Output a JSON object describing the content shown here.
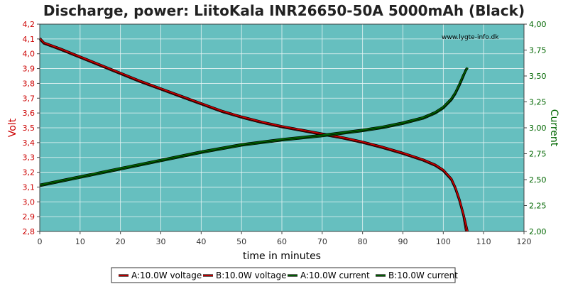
{
  "chart_data": {
    "type": "line",
    "title": "Discharge, power: LiitoKala INR26650-50A 5000mAh (Black)",
    "watermark": "www.lygte-info.dk",
    "xlabel": "time in minutes",
    "ylabel_left": "Volt",
    "ylabel_right": "Current",
    "xlim": [
      0,
      120
    ],
    "ylim_left": [
      2.8,
      4.2
    ],
    "ylim_right": [
      2.0,
      4.0
    ],
    "x_ticks": [
      "0",
      "10",
      "20",
      "30",
      "40",
      "50",
      "60",
      "70",
      "80",
      "90",
      "100",
      "110",
      "120"
    ],
    "y_left_ticks": [
      "2,8",
      "2,9",
      "3,0",
      "3,1",
      "3,2",
      "3,3",
      "3,4",
      "3,5",
      "3,6",
      "3,7",
      "3,8",
      "3,9",
      "4,0",
      "4,1",
      "4,2"
    ],
    "y_right_ticks": [
      "2,00",
      "2,25",
      "2,50",
      "2,75",
      "3,00",
      "3,25",
      "3,50",
      "3,75",
      "4,00"
    ],
    "grid": true,
    "legend_position": "bottom",
    "colors": {
      "plot_bg": "#66bfbf",
      "voltage": "#cc0000",
      "current": "#006600",
      "left_axis": "#cc0000",
      "right_axis": "#006600",
      "grid": "#e8f4f4"
    },
    "series": [
      {
        "name": "A:10.0W voltage",
        "axis": "left",
        "color": "#cc0000",
        "x": [
          0,
          1,
          3,
          5,
          10,
          15,
          20,
          25,
          30,
          35,
          40,
          45,
          50,
          55,
          60,
          65,
          70,
          75,
          80,
          85,
          90,
          95,
          98,
          100,
          102,
          103,
          104,
          105,
          105.7
        ],
        "y": [
          4.1,
          4.07,
          4.05,
          4.03,
          3.975,
          3.92,
          3.865,
          3.81,
          3.76,
          3.71,
          3.66,
          3.61,
          3.57,
          3.535,
          3.505,
          3.48,
          3.455,
          3.43,
          3.4,
          3.365,
          3.325,
          3.28,
          3.245,
          3.21,
          3.15,
          3.09,
          3.01,
          2.91,
          2.8
        ]
      },
      {
        "name": "B:10.0W voltage",
        "axis": "left",
        "color": "#cc0000",
        "x": [
          0,
          1,
          3,
          5,
          10,
          15,
          20,
          25,
          30,
          35,
          40,
          45,
          50,
          55,
          60,
          65,
          70,
          75,
          80,
          85,
          90,
          95,
          98,
          100,
          102,
          103,
          104,
          105,
          106
        ],
        "y": [
          4.105,
          4.075,
          4.055,
          4.035,
          3.98,
          3.925,
          3.87,
          3.815,
          3.765,
          3.715,
          3.665,
          3.615,
          3.575,
          3.54,
          3.51,
          3.485,
          3.46,
          3.435,
          3.405,
          3.37,
          3.33,
          3.285,
          3.25,
          3.215,
          3.155,
          3.095,
          3.015,
          2.915,
          2.8
        ]
      },
      {
        "name": "A:10.0W current",
        "axis": "right",
        "color": "#006600",
        "x": [
          0,
          5,
          10,
          20,
          30,
          40,
          50,
          60,
          70,
          80,
          85,
          90,
          95,
          98,
          100,
          102,
          103,
          104,
          105,
          105.7
        ],
        "y": [
          2.44,
          2.48,
          2.52,
          2.6,
          2.68,
          2.76,
          2.83,
          2.88,
          2.92,
          2.97,
          3.0,
          3.04,
          3.09,
          3.14,
          3.19,
          3.27,
          3.33,
          3.41,
          3.5,
          3.57
        ]
      },
      {
        "name": "B:10.0W current",
        "axis": "right",
        "color": "#006600",
        "x": [
          0,
          5,
          10,
          20,
          30,
          40,
          50,
          60,
          70,
          80,
          85,
          90,
          95,
          98,
          100,
          102,
          103,
          104,
          105,
          106
        ],
        "y": [
          2.45,
          2.49,
          2.53,
          2.61,
          2.69,
          2.77,
          2.84,
          2.89,
          2.93,
          2.98,
          3.01,
          3.05,
          3.1,
          3.15,
          3.2,
          3.28,
          3.34,
          3.42,
          3.51,
          3.58
        ]
      }
    ]
  }
}
